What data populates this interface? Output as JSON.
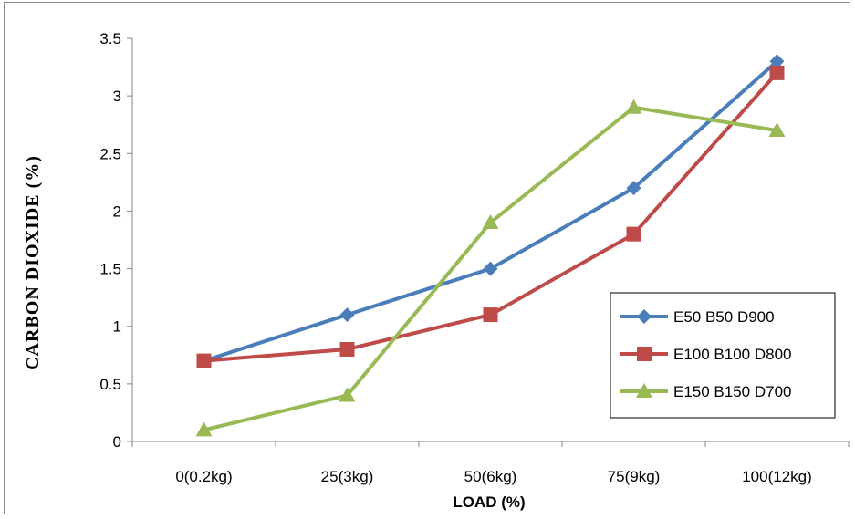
{
  "chart_data": {
    "type": "line",
    "title": "",
    "xlabel": "LOAD (%)",
    "ylabel": "CARBON  DIOXIDE  (%)",
    "categories": [
      "0(0.2kg)",
      "25(3kg)",
      "50(6kg)",
      "75(9kg)",
      "100(12kg)"
    ],
    "ylim": [
      0,
      3.5
    ],
    "yticks": [
      "0",
      "0.5",
      "1",
      "1.5",
      "2",
      "2.5",
      "3",
      "3.5"
    ],
    "legend_position": "right",
    "grid": false,
    "series": [
      {
        "name": "E50 B50 D900",
        "values": [
          0.7,
          1.1,
          1.5,
          2.2,
          3.3
        ],
        "color": "#4a7ebb",
        "marker": "diamond"
      },
      {
        "name": "E100 B100 D800",
        "values": [
          0.7,
          0.8,
          1.1,
          1.8,
          3.2
        ],
        "color": "#be4b48",
        "marker": "square"
      },
      {
        "name": "E150 B150 D700",
        "values": [
          0.1,
          0.4,
          1.9,
          2.9,
          2.7
        ],
        "color": "#98b954",
        "marker": "triangle"
      }
    ]
  }
}
